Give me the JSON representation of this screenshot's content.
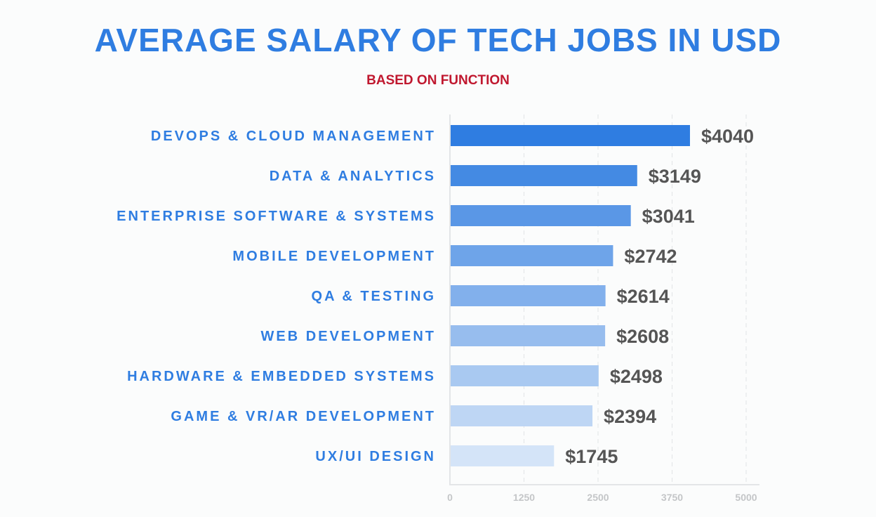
{
  "chart_data": {
    "type": "bar",
    "orientation": "horizontal",
    "title": "AVERAGE SALARY OF TECH JOBS IN USD",
    "subtitle": "BASED ON FUNCTION",
    "categories": [
      "DEVOPS & CLOUD MANAGEMENT",
      "DATA & ANALYTICS",
      "ENTERPRISE SOFTWARE & SYSTEMS",
      "MOBILE DEVELOPMENT",
      "QA & TESTING",
      "WEB DEVELOPMENT",
      "HARDWARE & EMBEDDED SYSTEMS",
      "GAME & VR/AR DEVELOPMENT",
      "UX/UI DESIGN"
    ],
    "values": [
      4040,
      3149,
      3041,
      2742,
      2614,
      2608,
      2498,
      2394,
      1745
    ],
    "data_labels": [
      "$4040",
      "$3149",
      "$3041",
      "$2742",
      "$2614",
      "$2608",
      "$2498",
      "$2394",
      "$1745"
    ],
    "bar_colors": [
      "#2f7de1",
      "#448ae3",
      "#5a97e6",
      "#6ea4e9",
      "#82b0ec",
      "#97bdee",
      "#a9c9f1",
      "#bed6f4",
      "#d4e4f8"
    ],
    "xlim": [
      0,
      5000
    ],
    "xticks": [
      "0",
      "1250",
      "2500",
      "3750",
      "5000"
    ],
    "grid": true,
    "xlabel": "",
    "ylabel": "",
    "label_color": "#2f7de1",
    "value_color": "#555555"
  }
}
